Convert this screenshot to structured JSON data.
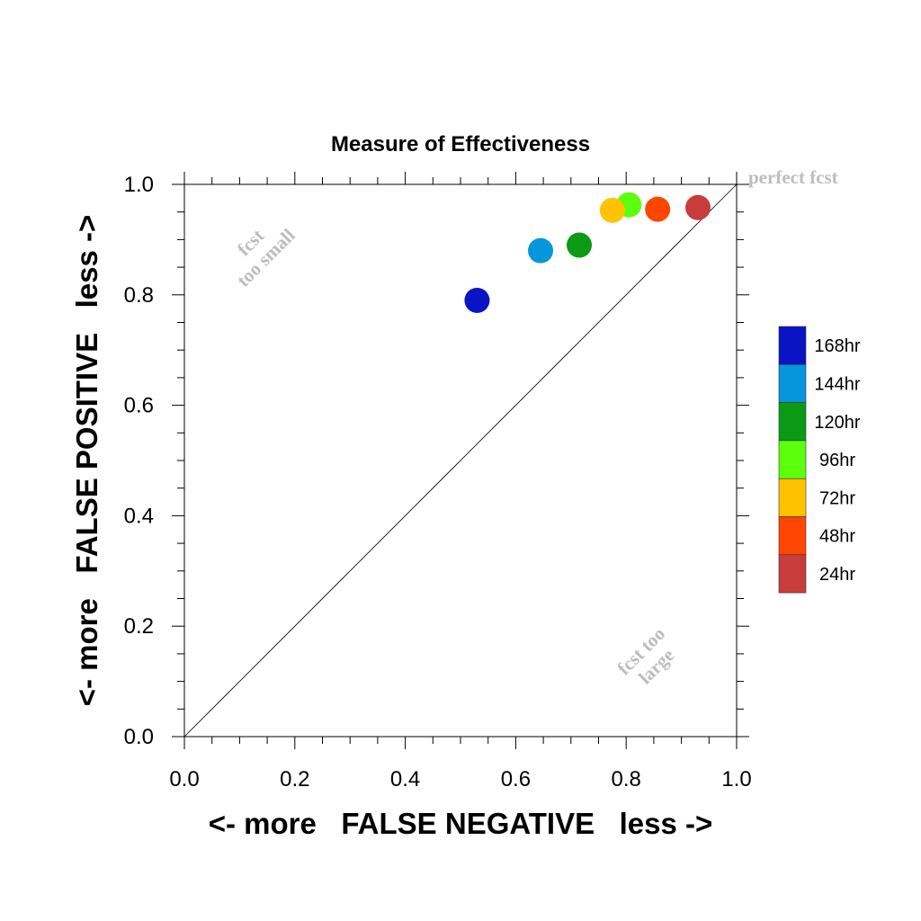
{
  "chart_data": {
    "type": "scatter",
    "title": "Measure of Effectiveness",
    "xlabel": "<- more   FALSE NEGATIVE   less ->",
    "ylabel": "<- more   FALSE POSITIVE   less ->",
    "xlim": [
      0.0,
      1.0
    ],
    "ylim": [
      0.0,
      1.0
    ],
    "xticks": [
      "0.0",
      "0.2",
      "0.4",
      "0.6",
      "0.8",
      "1.0"
    ],
    "yticks": [
      "0.0",
      "0.2",
      "0.4",
      "0.6",
      "0.8",
      "1.0"
    ],
    "grid": false,
    "legend_position": "right",
    "reference_line": "diagonal y = x",
    "annotations": {
      "perfect": "perfect fcst",
      "small_line1": "fcst",
      "small_line2": "too small",
      "large_line1": "fcst too",
      "large_line2": "large"
    },
    "series": [
      {
        "name": "168hr",
        "color": "#0a14c4",
        "x": 0.53,
        "y": 0.79
      },
      {
        "name": "144hr",
        "color": "#0596dc",
        "x": 0.645,
        "y": 0.88
      },
      {
        "name": "120hr",
        "color": "#0a9a14",
        "x": 0.715,
        "y": 0.89
      },
      {
        "name": "96hr",
        "color": "#5cff0c",
        "x": 0.805,
        "y": 0.963
      },
      {
        "name": "72hr",
        "color": "#ffc200",
        "x": 0.775,
        "y": 0.953
      },
      {
        "name": "48hr",
        "color": "#ff4600",
        "x": 0.857,
        "y": 0.955
      },
      {
        "name": "24hr",
        "color": "#c83c3c",
        "x": 0.93,
        "y": 0.958
      }
    ]
  }
}
